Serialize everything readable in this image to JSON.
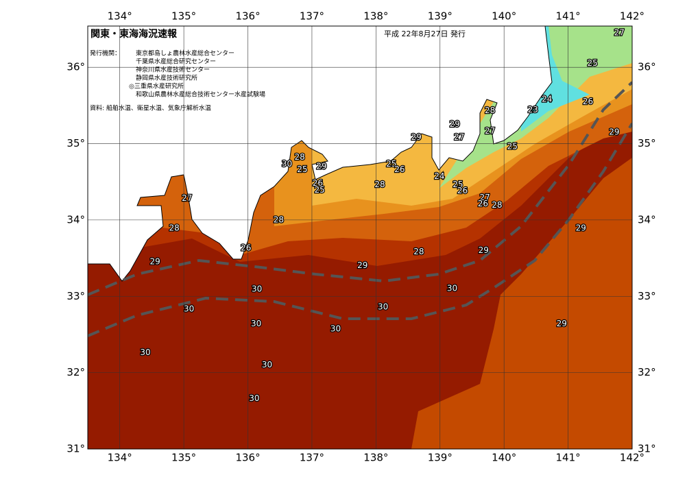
{
  "map": {
    "title": "関東・東海海況速報",
    "date": "平成 22年8月27日 発行",
    "issuer_label": "発行機関：",
    "issuers": [
      "東京都島しょ農林水産総合センター",
      "千葉県水産総合研究センター",
      "神奈川県水産技術センター",
      "静岡県水産技術研究所",
      "◎三重県水産研究所",
      "和歌山県農林水産総合技術センター水産試験場"
    ],
    "source": "資料: 船舶水温、衛星水温、気象庁解析水温",
    "xlim": [
      133.5,
      142
    ],
    "ylim": [
      31,
      36.54
    ],
    "xticks": [
      {
        "value": 134,
        "label": "134°"
      },
      {
        "value": 135,
        "label": "135°"
      },
      {
        "value": 136,
        "label": "136°"
      },
      {
        "value": 137,
        "label": "137°"
      },
      {
        "value": 138,
        "label": "138°"
      },
      {
        "value": 139,
        "label": "139°"
      },
      {
        "value": 140,
        "label": "140°"
      },
      {
        "value": 141,
        "label": "141°"
      },
      {
        "value": 142,
        "label": "142°"
      }
    ],
    "yticks": [
      {
        "value": 31,
        "label": "31°"
      },
      {
        "value": 32,
        "label": "32°"
      },
      {
        "value": 33,
        "label": "33°"
      },
      {
        "value": 34,
        "label": "34°"
      },
      {
        "value": 35,
        "label": "35°"
      },
      {
        "value": 36,
        "label": "36°"
      }
    ],
    "contour_labels": [
      {
        "value": 27,
        "lon": 141.8,
        "lat": 36.45
      },
      {
        "value": 25,
        "lon": 141.38,
        "lat": 36.05
      },
      {
        "value": 26,
        "lon": 141.31,
        "lat": 35.55
      },
      {
        "value": 24,
        "lon": 140.67,
        "lat": 35.58
      },
      {
        "value": 23,
        "lon": 140.45,
        "lat": 35.44
      },
      {
        "value": 29,
        "lon": 141.72,
        "lat": 35.15
      },
      {
        "value": 28,
        "lon": 139.78,
        "lat": 35.43
      },
      {
        "value": 29,
        "lon": 139.23,
        "lat": 35.25
      },
      {
        "value": 27,
        "lon": 139.78,
        "lat": 35.16
      },
      {
        "value": 27,
        "lon": 139.3,
        "lat": 35.08
      },
      {
        "value": 25,
        "lon": 140.13,
        "lat": 34.96
      },
      {
        "value": 29,
        "lon": 138.63,
        "lat": 35.08
      },
      {
        "value": 28,
        "lon": 136.81,
        "lat": 34.82
      },
      {
        "value": 30,
        "lon": 136.61,
        "lat": 34.73
      },
      {
        "value": 29,
        "lon": 137.15,
        "lat": 34.7
      },
      {
        "value": 25,
        "lon": 136.85,
        "lat": 34.66
      },
      {
        "value": 25,
        "lon": 138.24,
        "lat": 34.73
      },
      {
        "value": 26,
        "lon": 138.37,
        "lat": 34.66
      },
      {
        "value": 26,
        "lon": 137.09,
        "lat": 34.48
      },
      {
        "value": 25,
        "lon": 137.12,
        "lat": 34.39
      },
      {
        "value": 24,
        "lon": 138.99,
        "lat": 34.57
      },
      {
        "value": 25,
        "lon": 139.28,
        "lat": 34.46
      },
      {
        "value": 26,
        "lon": 139.35,
        "lat": 34.38
      },
      {
        "value": 28,
        "lon": 138.06,
        "lat": 34.46
      },
      {
        "value": 27,
        "lon": 139.7,
        "lat": 34.29
      },
      {
        "value": 26,
        "lon": 139.67,
        "lat": 34.21
      },
      {
        "value": 28,
        "lon": 139.89,
        "lat": 34.19
      },
      {
        "value": 27,
        "lon": 135.05,
        "lat": 34.28
      },
      {
        "value": 28,
        "lon": 134.85,
        "lat": 33.89
      },
      {
        "value": 28,
        "lon": 136.48,
        "lat": 34.0
      },
      {
        "value": 26,
        "lon": 135.97,
        "lat": 33.63
      },
      {
        "value": 29,
        "lon": 134.55,
        "lat": 33.45
      },
      {
        "value": 28,
        "lon": 138.67,
        "lat": 33.58
      },
      {
        "value": 29,
        "lon": 139.68,
        "lat": 33.6
      },
      {
        "value": 29,
        "lon": 137.79,
        "lat": 33.4
      },
      {
        "value": 29,
        "lon": 141.2,
        "lat": 33.89
      },
      {
        "value": 30,
        "lon": 139.19,
        "lat": 33.1
      },
      {
        "value": 30,
        "lon": 136.14,
        "lat": 33.09
      },
      {
        "value": 30,
        "lon": 138.11,
        "lat": 32.86
      },
      {
        "value": 30,
        "lon": 135.08,
        "lat": 32.83
      },
      {
        "value": 30,
        "lon": 136.13,
        "lat": 32.64
      },
      {
        "value": 30,
        "lon": 137.37,
        "lat": 32.57
      },
      {
        "value": 29,
        "lon": 140.9,
        "lat": 32.64
      },
      {
        "value": 30,
        "lon": 134.4,
        "lat": 32.26
      },
      {
        "value": 30,
        "lon": 136.3,
        "lat": 32.1
      },
      {
        "value": 30,
        "lon": 136.1,
        "lat": 31.66
      }
    ]
  }
}
